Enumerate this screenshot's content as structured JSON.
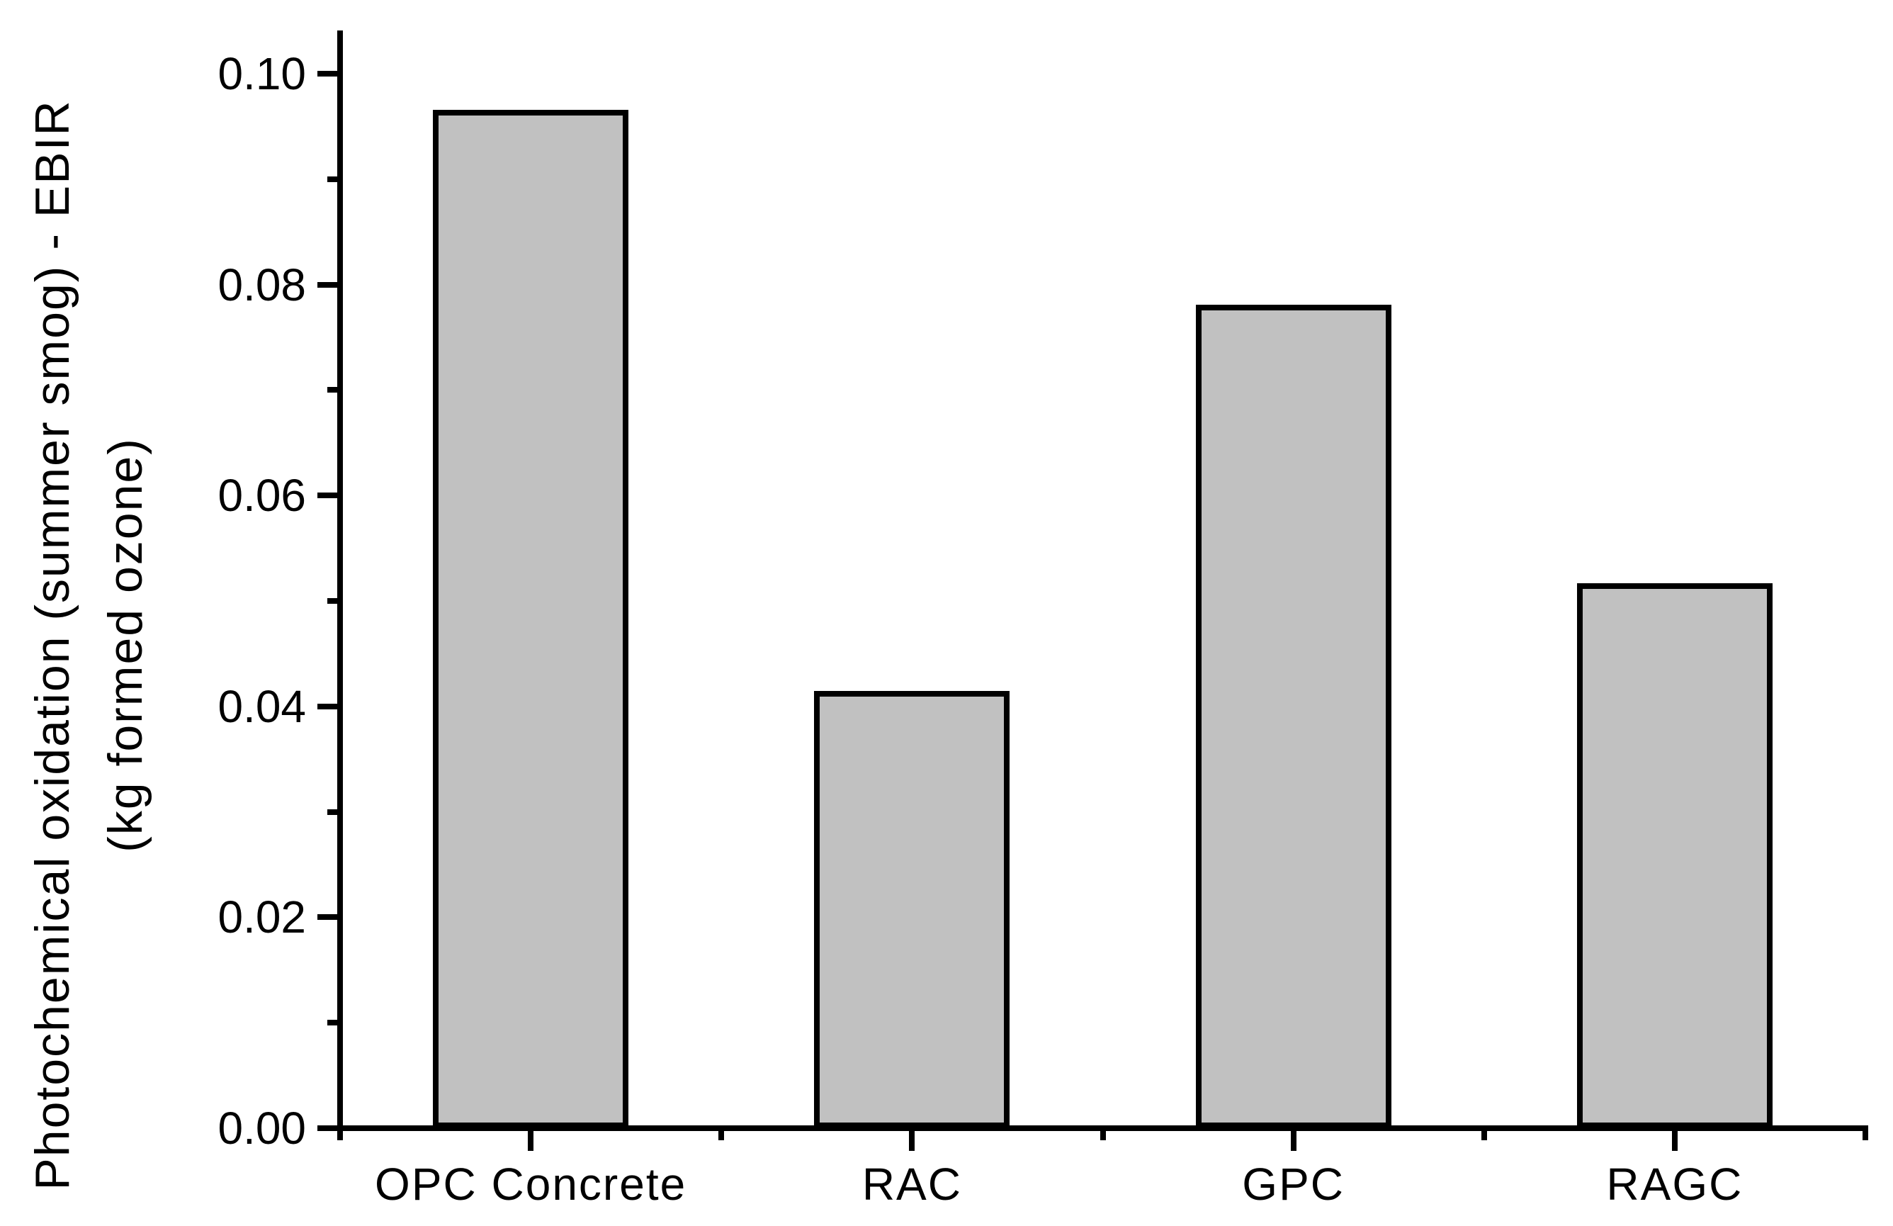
{
  "chart_data": {
    "type": "bar",
    "title": "",
    "xlabel": "",
    "ylabel_line1": "Photochemical oxidation (summer smog) - EBIR",
    "ylabel_line2": "(kg formed ozone)",
    "categories": [
      "OPC Concrete",
      "RAC",
      "GPC",
      "RAGC"
    ],
    "values": [
      0.0963,
      0.0412,
      0.0778,
      0.0514
    ],
    "ylim": [
      0,
      0.105
    ],
    "y_major_ticks": [
      {
        "value": 0.0,
        "label": "0.00"
      },
      {
        "value": 0.02,
        "label": "0.02"
      },
      {
        "value": 0.04,
        "label": "0.04"
      },
      {
        "value": 0.06,
        "label": "0.06"
      },
      {
        "value": 0.08,
        "label": "0.08"
      },
      {
        "value": 0.1,
        "label": "0.10"
      }
    ],
    "y_minor_ticks": [
      0.01,
      0.03,
      0.05,
      0.07,
      0.09
    ],
    "grid": false,
    "legend": false,
    "colors": {
      "bar_fill": "#c1c1c1",
      "bar_border": "#000000",
      "axis": "#000000",
      "text": "#000000",
      "background": "#ffffff"
    }
  }
}
